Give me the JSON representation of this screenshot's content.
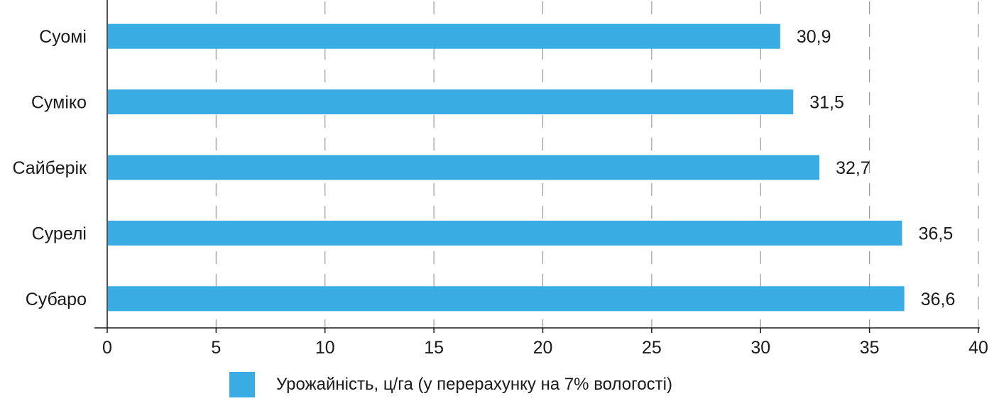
{
  "chart_data": {
    "type": "bar",
    "orientation": "horizontal",
    "categories": [
      "Суомі",
      "Суміко",
      "Сайберік",
      "Сурелі",
      "Субаро"
    ],
    "series": [
      {
        "name": "Урожайність, ц/га (у перерахунку на 7% вологості)",
        "values": [
          30.9,
          31.5,
          32.7,
          36.5,
          36.6
        ],
        "value_labels": [
          "30,9",
          "31,5",
          "32,7",
          "36,5",
          "36,6"
        ]
      }
    ],
    "x_ticks": [
      "0",
      "5",
      "10",
      "15",
      "20",
      "25",
      "30",
      "35",
      "40"
    ],
    "xlim": [
      0,
      40
    ],
    "grid": "vertical dashed",
    "legend_position": "bottom",
    "bar_color": "#3aace4",
    "axis_color": "#1a1a1a",
    "grid_color": "#9a9a9a"
  }
}
